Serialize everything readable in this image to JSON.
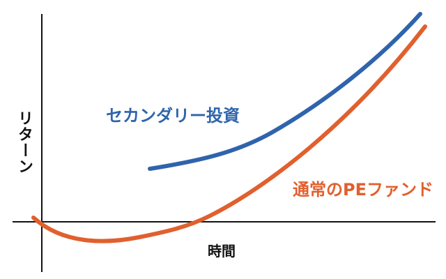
{
  "axes": {
    "y_label": "リターン",
    "x_label": "時間"
  },
  "series": {
    "secondary": {
      "name": "セカンダリー投資",
      "color": "#2f64ac",
      "shape": "starts later above the time axis and rises steadily, ending highest"
    },
    "pe_fund": {
      "name": "通常のPEファンド",
      "color": "#e0602e",
      "shape": "J-curve: dips below zero early, crosses zero mid-way, then rises steeply"
    }
  },
  "colors": {
    "axis": "#111111",
    "background": "#ffffff"
  }
}
